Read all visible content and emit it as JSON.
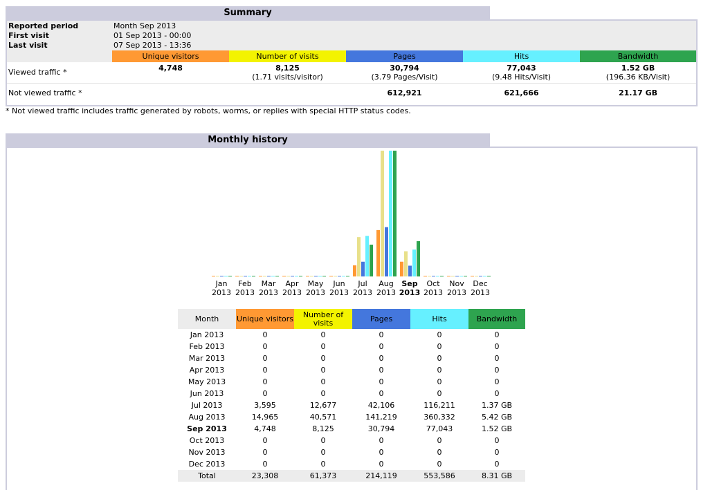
{
  "summary": {
    "title": "Summary",
    "reported_period_label": "Reported period",
    "reported_period_value": "Month Sep 2013",
    "first_visit_label": "First visit",
    "first_visit_value": "01 Sep 2013 - 00:00",
    "last_visit_label": "Last visit",
    "last_visit_value": "07 Sep 2013 - 13:36",
    "columns": [
      "Unique visitors",
      "Number of visits",
      "Pages",
      "Hits",
      "Bandwidth"
    ],
    "viewed_label": "Viewed traffic *",
    "viewed": {
      "unique_visitors": "4,748",
      "visits": "8,125",
      "visits_sub": "(1.71 visits/visitor)",
      "pages": "30,794",
      "pages_sub": "(3.79 Pages/Visit)",
      "hits": "77,043",
      "hits_sub": "(9.48 Hits/Visit)",
      "bandwidth": "1.52 GB",
      "bandwidth_sub": "(196.36 KB/Visit)"
    },
    "not_viewed_label": "Not viewed traffic *",
    "not_viewed": {
      "pages": "612,921",
      "hits": "621,666",
      "bandwidth": "21.17 GB"
    },
    "footnote": "* Not viewed traffic includes traffic generated by robots, worms, or replies with special HTTP status codes."
  },
  "history": {
    "title": "Monthly history",
    "colors": {
      "unique_visitors": "#ff9933",
      "visits": "#e8e08a",
      "pages": "#4477dd",
      "hits": "#66f0ff",
      "bandwidth": "#2ea44f"
    },
    "table_headers": {
      "month": "Month",
      "unique_visitors": "Unique visitors",
      "visits": "Number of visits",
      "pages": "Pages",
      "hits": "Hits",
      "bandwidth": "Bandwidth"
    },
    "months": [
      {
        "mon": "Jan",
        "year": "2013",
        "month": "Jan 2013",
        "uv": "0",
        "nv": "0",
        "pg": "0",
        "ht": "0",
        "bw": "0"
      },
      {
        "mon": "Feb",
        "year": "2013",
        "month": "Feb 2013",
        "uv": "0",
        "nv": "0",
        "pg": "0",
        "ht": "0",
        "bw": "0"
      },
      {
        "mon": "Mar",
        "year": "2013",
        "month": "Mar 2013",
        "uv": "0",
        "nv": "0",
        "pg": "0",
        "ht": "0",
        "bw": "0"
      },
      {
        "mon": "Apr",
        "year": "2013",
        "month": "Apr 2013",
        "uv": "0",
        "nv": "0",
        "pg": "0",
        "ht": "0",
        "bw": "0"
      },
      {
        "mon": "May",
        "year": "2013",
        "month": "May 2013",
        "uv": "0",
        "nv": "0",
        "pg": "0",
        "ht": "0",
        "bw": "0"
      },
      {
        "mon": "Jun",
        "year": "2013",
        "month": "Jun 2013",
        "uv": "0",
        "nv": "0",
        "pg": "0",
        "ht": "0",
        "bw": "0"
      },
      {
        "mon": "Jul",
        "year": "2013",
        "month": "Jul 2013",
        "uv": "3,595",
        "nv": "12,677",
        "pg": "42,106",
        "ht": "116,211",
        "bw": "1.37 GB"
      },
      {
        "mon": "Aug",
        "year": "2013",
        "month": "Aug 2013",
        "uv": "14,965",
        "nv": "40,571",
        "pg": "141,219",
        "ht": "360,332",
        "bw": "5.42 GB"
      },
      {
        "mon": "Sep",
        "year": "2013",
        "month": "Sep 2013",
        "uv": "4,748",
        "nv": "8,125",
        "pg": "30,794",
        "ht": "77,043",
        "bw": "1.52 GB"
      },
      {
        "mon": "Oct",
        "year": "2013",
        "month": "Oct 2013",
        "uv": "0",
        "nv": "0",
        "pg": "0",
        "ht": "0",
        "bw": "0"
      },
      {
        "mon": "Nov",
        "year": "2013",
        "month": "Nov 2013",
        "uv": "0",
        "nv": "0",
        "pg": "0",
        "ht": "0",
        "bw": "0"
      },
      {
        "mon": "Dec",
        "year": "2013",
        "month": "Dec 2013",
        "uv": "0",
        "nv": "0",
        "pg": "0",
        "ht": "0",
        "bw": "0"
      }
    ],
    "current_month_index": 8,
    "total": {
      "label": "Total",
      "uv": "23,308",
      "nv": "61,373",
      "pg": "214,119",
      "ht": "553,586",
      "bw": "8.31 GB"
    }
  },
  "chart_data": {
    "type": "bar",
    "categories": [
      "Jan 2013",
      "Feb 2013",
      "Mar 2013",
      "Apr 2013",
      "May 2013",
      "Jun 2013",
      "Jul 2013",
      "Aug 2013",
      "Sep 2013",
      "Oct 2013",
      "Nov 2013",
      "Dec 2013"
    ],
    "series": [
      {
        "name": "Unique visitors",
        "values": [
          0,
          0,
          0,
          0,
          0,
          0,
          3595,
          14965,
          4748,
          0,
          0,
          0
        ]
      },
      {
        "name": "Number of visits",
        "values": [
          0,
          0,
          0,
          0,
          0,
          0,
          12677,
          40571,
          8125,
          0,
          0,
          0
        ]
      },
      {
        "name": "Pages",
        "values": [
          0,
          0,
          0,
          0,
          0,
          0,
          42106,
          141219,
          30794,
          0,
          0,
          0
        ]
      },
      {
        "name": "Hits",
        "values": [
          0,
          0,
          0,
          0,
          0,
          0,
          116211,
          360332,
          77043,
          0,
          0,
          0
        ]
      },
      {
        "name": "Bandwidth",
        "values": [
          0,
          0,
          0,
          0,
          0,
          0,
          1.37,
          5.42,
          1.52,
          0,
          0,
          0
        ]
      }
    ]
  }
}
